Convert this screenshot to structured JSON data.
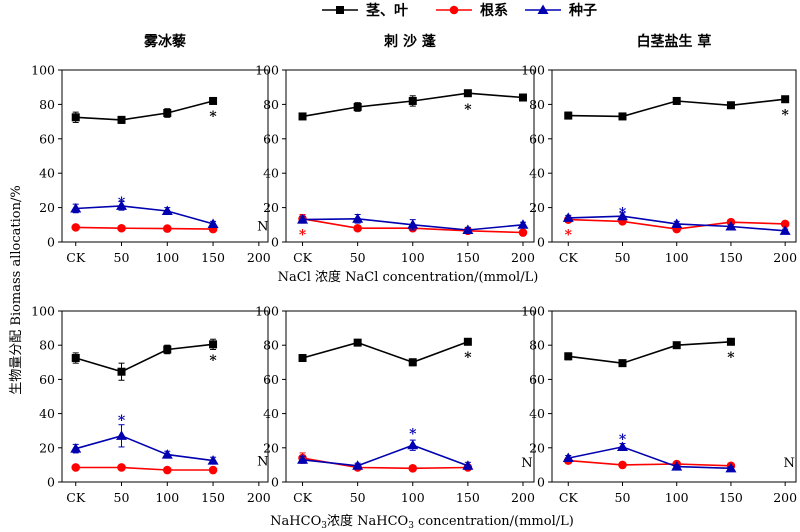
{
  "legend": [
    {
      "name": "茎、叶",
      "marker": "square",
      "color": "#000000"
    },
    {
      "name": "根系",
      "marker": "circle",
      "color": "#ff0000"
    },
    {
      "name": "种子",
      "marker": "triangle",
      "color": "#0000b0"
    }
  ],
  "ylabel": "生物量分配 Biomass allocation/%",
  "xlabel_top": "NaCl 浓度 NaCl concentration/(mmol/L)",
  "xlabel_bottom_parts": [
    "NaHCO",
    "3",
    "浓度 NaHCO",
    "3",
    " concentration/(mmol/L)"
  ],
  "chart_data": [
    {
      "type": "line",
      "row": 0,
      "col": 0,
      "title": "雾冰藜",
      "categories": [
        "CK",
        "50",
        "100",
        "150",
        "200"
      ],
      "ylim": [
        0,
        100
      ],
      "yticks": [
        "0",
        "20",
        "40",
        "60",
        "80",
        "100"
      ],
      "series": [
        {
          "name": "茎、叶",
          "values": [
            72.5,
            71,
            75,
            82,
            null
          ],
          "errors": [
            3,
            2,
            2.5,
            1.5,
            null
          ]
        },
        {
          "name": "根系",
          "values": [
            8.5,
            8,
            7.8,
            7.5,
            null
          ],
          "errors": [
            0.8,
            0.5,
            0.5,
            0.6,
            null
          ]
        },
        {
          "name": "种子",
          "values": [
            19.5,
            21,
            18,
            10.5,
            null
          ],
          "errors": [
            2.5,
            2.5,
            2,
            1.5,
            null
          ]
        }
      ],
      "annotations": [
        {
          "text": "*",
          "category": "50",
          "y": 25,
          "color": "#0000b0"
        },
        {
          "text": "*",
          "category": "150",
          "y": 75,
          "color": "#000000"
        },
        {
          "text": "N",
          "category": "200",
          "y": 9,
          "color": "#000000"
        }
      ]
    },
    {
      "type": "line",
      "row": 0,
      "col": 1,
      "title": "刺 沙 蓬",
      "categories": [
        "CK",
        "50",
        "100",
        "150",
        "200"
      ],
      "ylim": [
        0,
        100
      ],
      "yticks": [
        "0",
        "20",
        "40",
        "60",
        "80",
        "100"
      ],
      "series": [
        {
          "name": "茎、叶",
          "values": [
            73,
            78.5,
            82,
            86.5,
            84
          ],
          "errors": [
            1.5,
            2.5,
            3,
            1.5,
            1
          ]
        },
        {
          "name": "根系",
          "values": [
            13.5,
            8,
            8,
            6.5,
            5.5
          ],
          "errors": [
            2.5,
            1,
            1,
            1,
            0.8
          ]
        },
        {
          "name": "种子",
          "values": [
            13,
            13.5,
            10,
            7,
            10
          ],
          "errors": [
            2,
            2.5,
            3,
            1.5,
            1.5
          ]
        }
      ],
      "annotations": [
        {
          "text": "*",
          "category": "CK",
          "y": 6,
          "color": "#ff0000"
        },
        {
          "text": "*",
          "category": "150",
          "y": 79,
          "color": "#000000"
        }
      ]
    },
    {
      "type": "line",
      "row": 0,
      "col": 2,
      "title": "白茎盐生 草",
      "categories": [
        "CK",
        "50",
        "100",
        "150",
        "200"
      ],
      "ylim": [
        0,
        100
      ],
      "yticks": [
        "0",
        "20",
        "40",
        "60",
        "80",
        "100"
      ],
      "series": [
        {
          "name": "茎、叶",
          "values": [
            73.5,
            73,
            82,
            79.5,
            83
          ],
          "errors": [
            2,
            1.5,
            1.5,
            1.5,
            1.5
          ]
        },
        {
          "name": "根系",
          "values": [
            13,
            12,
            7.5,
            11.5,
            10.5
          ],
          "errors": [
            1.5,
            1.5,
            1,
            1,
            1
          ]
        },
        {
          "name": "种子",
          "values": [
            14,
            15,
            10.5,
            9,
            6.5
          ],
          "errors": [
            1.5,
            2,
            1.5,
            1,
            1
          ]
        }
      ],
      "annotations": [
        {
          "text": "*",
          "category": "CK",
          "y": 6,
          "color": "#ff0000"
        },
        {
          "text": "*",
          "category": "50",
          "y": 19,
          "color": "#0000b0"
        },
        {
          "text": "*",
          "category": "200",
          "y": 76,
          "color": "#000000"
        }
      ]
    },
    {
      "type": "line",
      "row": 1,
      "col": 0,
      "title": "",
      "categories": [
        "CK",
        "50",
        "100",
        "150",
        "200"
      ],
      "ylim": [
        0,
        100
      ],
      "yticks": [
        "0",
        "20",
        "40",
        "60",
        "80",
        "100"
      ],
      "series": [
        {
          "name": "茎、叶",
          "values": [
            72.5,
            64.5,
            77.5,
            80.5,
            null
          ],
          "errors": [
            3,
            5,
            2.5,
            3,
            null
          ]
        },
        {
          "name": "根系",
          "values": [
            8.5,
            8.5,
            7,
            7,
            null
          ],
          "errors": [
            0.8,
            1,
            0.8,
            0.8,
            null
          ]
        },
        {
          "name": "种子",
          "values": [
            19.5,
            27,
            16,
            12.5,
            null
          ],
          "errors": [
            2.5,
            6.5,
            2,
            2,
            null
          ]
        }
      ],
      "annotations": [
        {
          "text": "*",
          "category": "50",
          "y": 38,
          "color": "#0000b0"
        },
        {
          "text": "*",
          "category": "150",
          "y": 73,
          "color": "#000000"
        },
        {
          "text": "N",
          "category": "200",
          "y": 12,
          "color": "#000000"
        }
      ]
    },
    {
      "type": "line",
      "row": 1,
      "col": 1,
      "title": "",
      "categories": [
        "CK",
        "50",
        "100",
        "150",
        "200"
      ],
      "ylim": [
        0,
        100
      ],
      "yticks": [
        "0",
        "20",
        "40",
        "60",
        "80",
        "100"
      ],
      "series": [
        {
          "name": "茎、叶",
          "values": [
            72.5,
            81.5,
            70,
            82,
            null
          ],
          "errors": [
            1.5,
            1.5,
            2,
            1.5,
            null
          ]
        },
        {
          "name": "根系",
          "values": [
            14,
            8.5,
            8,
            8.5,
            null
          ],
          "errors": [
            3,
            1,
            1,
            1,
            null
          ]
        },
        {
          "name": "种子",
          "values": [
            13,
            9.5,
            21.5,
            9.5,
            null
          ],
          "errors": [
            2,
            1.5,
            3,
            2,
            null
          ]
        }
      ],
      "annotations": [
        {
          "text": "*",
          "category": "100",
          "y": 30,
          "color": "#0000b0"
        },
        {
          "text": "*",
          "category": "150",
          "y": 75,
          "color": "#000000"
        },
        {
          "text": "N",
          "category": "200",
          "y": 11,
          "color": "#000000"
        }
      ]
    },
    {
      "type": "line",
      "row": 1,
      "col": 2,
      "title": "",
      "categories": [
        "CK",
        "50",
        "100",
        "150",
        "200"
      ],
      "ylim": [
        0,
        100
      ],
      "yticks": [
        "0",
        "20",
        "40",
        "60",
        "80",
        "100"
      ],
      "series": [
        {
          "name": "茎、叶",
          "values": [
            73.5,
            69.5,
            80,
            82,
            null
          ],
          "errors": [
            2,
            1.5,
            1.5,
            1.5,
            null
          ]
        },
        {
          "name": "根系",
          "values": [
            12.5,
            10,
            10.5,
            9.5,
            null
          ],
          "errors": [
            1.5,
            1,
            1,
            1.5,
            null
          ]
        },
        {
          "name": "种子",
          "values": [
            14,
            20.5,
            9,
            8,
            null
          ],
          "errors": [
            1.5,
            2,
            1,
            1,
            null
          ]
        }
      ],
      "annotations": [
        {
          "text": "*",
          "category": "50",
          "y": 27,
          "color": "#0000b0"
        },
        {
          "text": "*",
          "category": "150",
          "y": 75,
          "color": "#000000"
        },
        {
          "text": "N",
          "category": "200",
          "y": 11,
          "color": "#000000"
        }
      ]
    }
  ]
}
